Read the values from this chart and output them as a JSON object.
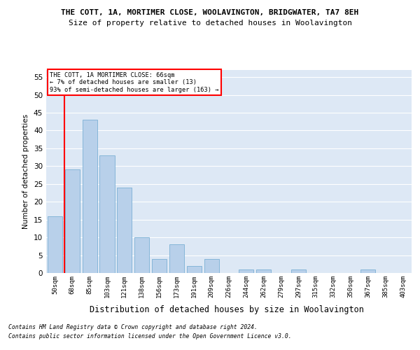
{
  "title": "THE COTT, 1A, MORTIMER CLOSE, WOOLAVINGTON, BRIDGWATER, TA7 8EH",
  "subtitle": "Size of property relative to detached houses in Woolavington",
  "xlabel": "Distribution of detached houses by size in Woolavington",
  "ylabel": "Number of detached properties",
  "categories": [
    "50sqm",
    "68sqm",
    "85sqm",
    "103sqm",
    "121sqm",
    "138sqm",
    "156sqm",
    "173sqm",
    "191sqm",
    "209sqm",
    "226sqm",
    "244sqm",
    "262sqm",
    "279sqm",
    "297sqm",
    "315sqm",
    "332sqm",
    "350sqm",
    "367sqm",
    "385sqm",
    "403sqm"
  ],
  "values": [
    16,
    29,
    43,
    33,
    24,
    10,
    4,
    8,
    2,
    4,
    0,
    1,
    1,
    0,
    1,
    0,
    0,
    0,
    1,
    0,
    0
  ],
  "bar_color": "#b8d0ea",
  "bar_edge_color": "#7aafd4",
  "ylim": [
    0,
    57
  ],
  "yticks": [
    0,
    5,
    10,
    15,
    20,
    25,
    30,
    35,
    40,
    45,
    50,
    55
  ],
  "red_line_index": 1,
  "annotation_title": "THE COTT, 1A MORTIMER CLOSE: 66sqm",
  "annotation_line2": "← 7% of detached houses are smaller (13)",
  "annotation_line3": "93% of semi-detached houses are larger (163) →",
  "background_color": "#dde8f5",
  "grid_color": "#ffffff",
  "footer_line1": "Contains HM Land Registry data © Crown copyright and database right 2024.",
  "footer_line2": "Contains public sector information licensed under the Open Government Licence v3.0."
}
